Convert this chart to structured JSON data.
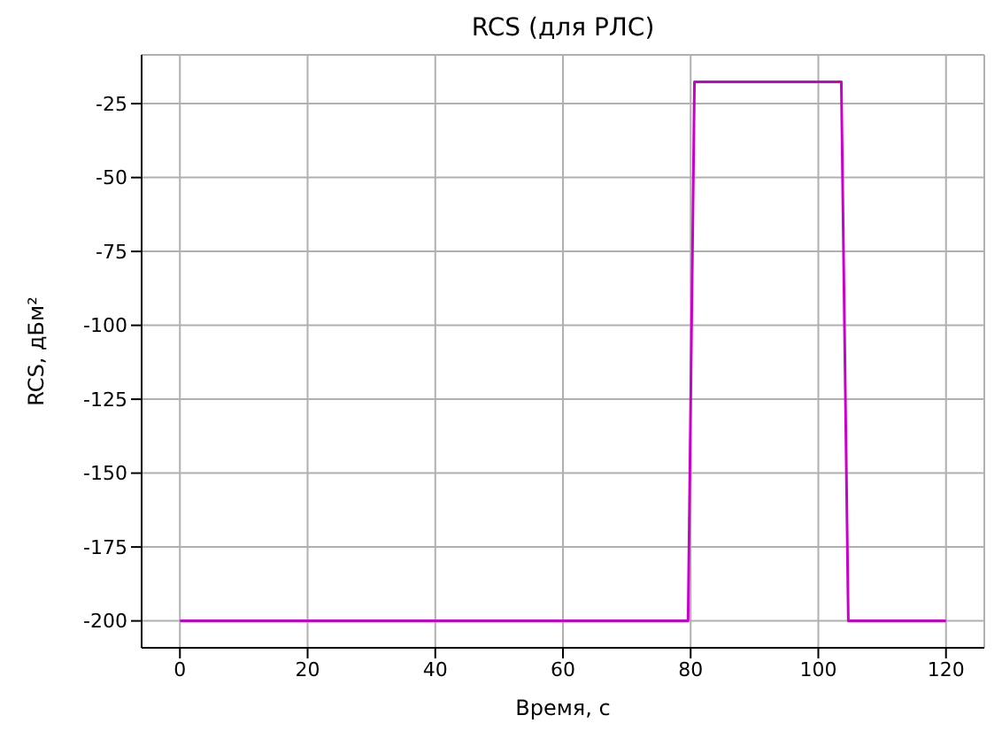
{
  "chart_data": {
    "type": "line",
    "title": "RCS (для РЛС)",
    "xlabel": "Время, с",
    "ylabel": "RCS, дБм²",
    "x": [
      0,
      79.6,
      80.6,
      103.6,
      104.7,
      120
    ],
    "series": [
      {
        "color": "#cc00cc",
        "values": [
          -200,
          -200,
          -17.6,
          -17.6,
          -200,
          -200
        ]
      }
    ],
    "xlim": [
      -6,
      126
    ],
    "xticks": [
      0,
      20,
      40,
      60,
      80,
      100,
      120
    ],
    "ylim": [
      -209.1,
      -8.5
    ],
    "yticks": [
      -25,
      -50,
      -75,
      -100,
      -125,
      -150,
      -175,
      -200
    ],
    "grid": true,
    "line_style": "solid",
    "marker": "none"
  }
}
